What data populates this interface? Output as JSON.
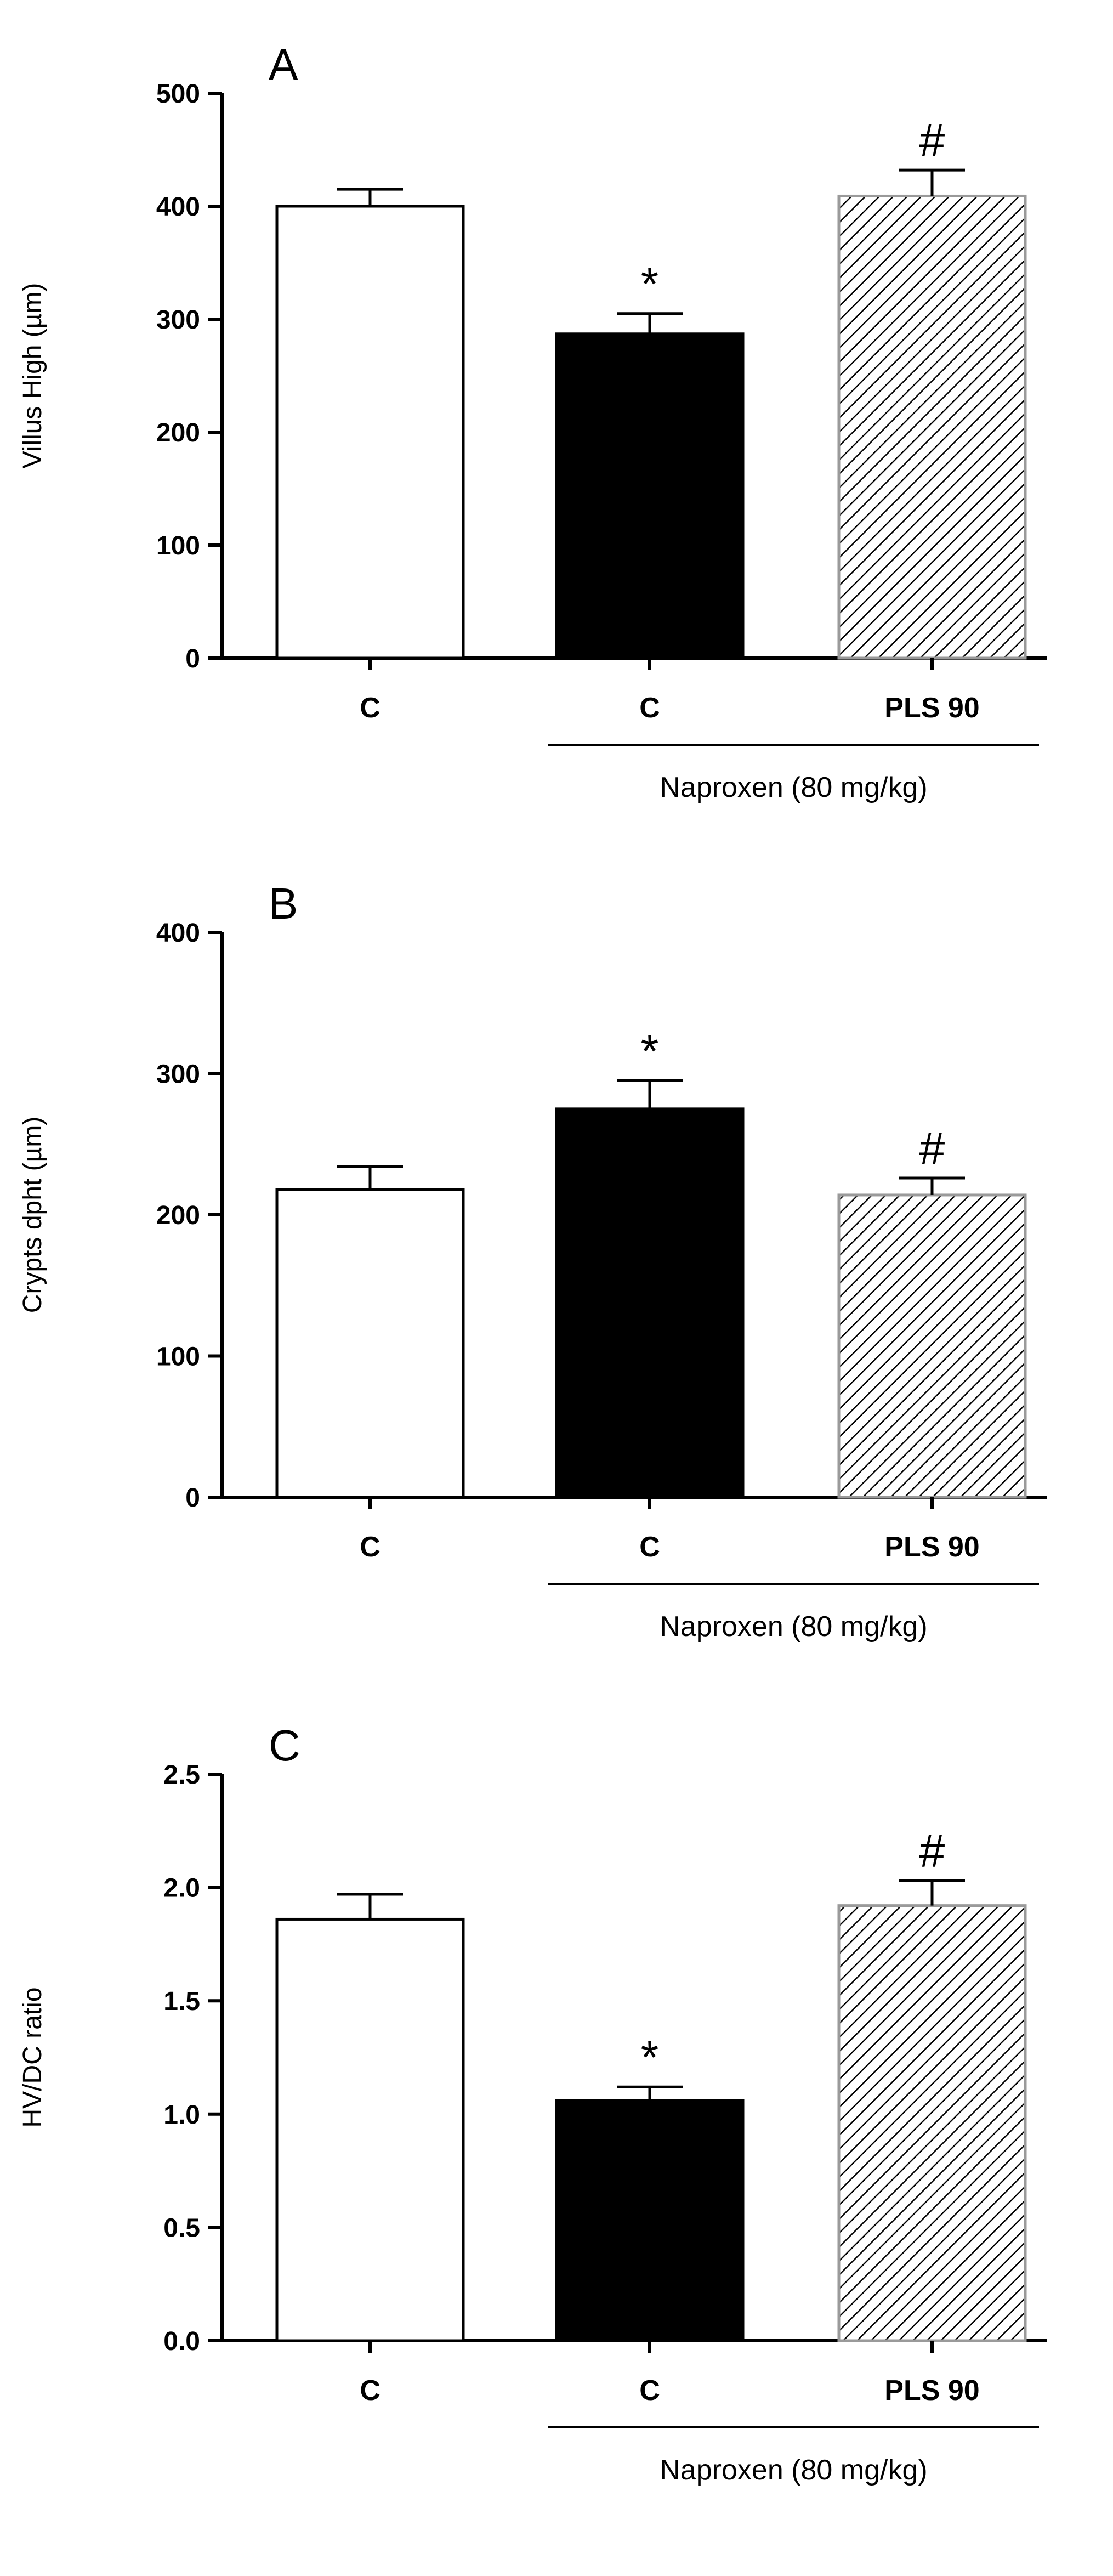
{
  "chart_data": [
    {
      "type": "bar",
      "panel": "A",
      "ylabel": "Villus High (µm)",
      "ylim": [
        0,
        500
      ],
      "yticks": [
        0,
        100,
        200,
        300,
        400,
        500
      ],
      "categories": [
        "C",
        "C",
        "PLS 90"
      ],
      "values": [
        400,
        287,
        409
      ],
      "errors": [
        15,
        18,
        23
      ],
      "bar_colors": [
        "#ffffff",
        "#000000",
        "hatch"
      ],
      "annotations": [
        "",
        "*",
        "#"
      ],
      "group_label": "Naproxen (80 mg/kg)",
      "grid": false
    },
    {
      "type": "bar",
      "panel": "B",
      "ylabel": "Crypts dpht (µm)",
      "ylim": [
        0,
        400
      ],
      "yticks": [
        0,
        100,
        200,
        300,
        400
      ],
      "categories": [
        "C",
        "C",
        "PLS 90"
      ],
      "values": [
        218,
        275,
        214
      ],
      "errors": [
        16,
        20,
        12
      ],
      "bar_colors": [
        "#ffffff",
        "#000000",
        "hatch"
      ],
      "annotations": [
        "",
        "*",
        "#"
      ],
      "group_label": "Naproxen (80 mg/kg)",
      "grid": false
    },
    {
      "type": "bar",
      "panel": "C",
      "ylabel": "HV/DC ratio",
      "ylim": [
        0,
        2.5
      ],
      "yticks": [
        "0.0",
        "0.5",
        "1.0",
        "1.5",
        "2.0",
        "2.5"
      ],
      "categories": [
        "C",
        "C",
        "PLS 90"
      ],
      "values": [
        1.86,
        1.06,
        1.92
      ],
      "errors": [
        0.11,
        0.06,
        0.11
      ],
      "bar_colors": [
        "#ffffff",
        "#000000",
        "hatch"
      ],
      "annotations": [
        "",
        "*",
        "#"
      ],
      "group_label": "Naproxen (80 mg/kg)",
      "grid": false
    }
  ]
}
